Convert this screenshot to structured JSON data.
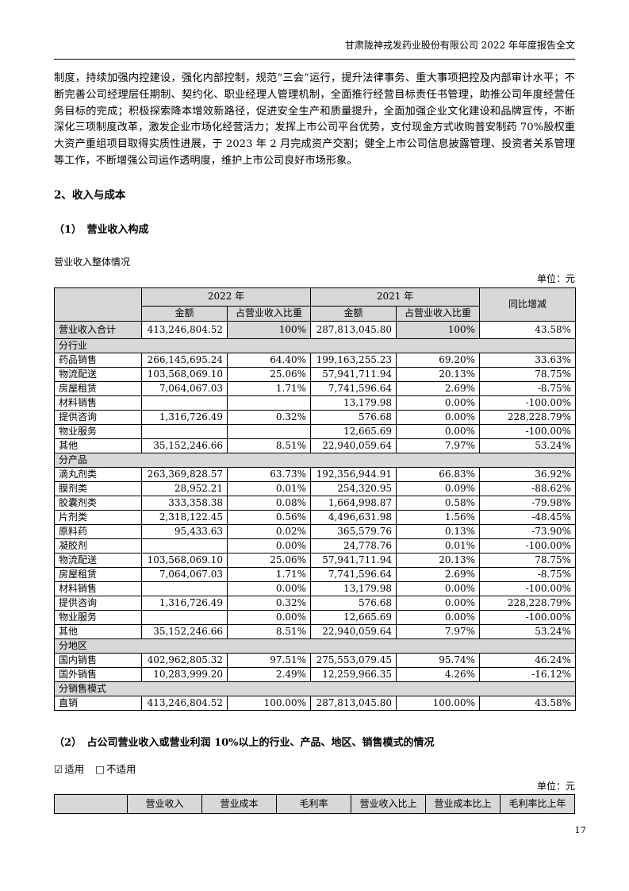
{
  "header": {
    "title": "甘肃陇神戎发药业股份有限公司 2022 年年度报告全文"
  },
  "body_paragraph": "制度，持续加强内控建设，强化内部控制，规范“三会”运行，提升法律事务、重大事项把控及内部审计水平；不断完善公司经理层任期制、契约化、职业经理人管理机制，全面推行经营目标责任书管理，助推公司年度经营任务目标的完成；积极探索降本增效新路径，促进安全生产和质量提升，全面加强企业文化建设和品牌宣传，不断深化三项制度改革，激发企业市场化经营活力；发挥上市公司平台优势，支付现金方式收购普安制药 70%股权重大资产重组项目取得实质性进展，于 2023 年 2 月完成资产交割；健全上市公司信息披露管理、投资者关系管理等工作，不断增强公司运作透明度，维护上市公司良好市场形象。",
  "sections": {
    "income_cost_title": "2、收入与成本",
    "sub1_title": "（1）　营业收入构成",
    "table1_caption": "营业收入整体情况",
    "unit_label": "单位：元",
    "sub2_title": "（2）　占公司营业收入或营业利润 10%以上的行业、产品、地区、销售模式的情况"
  },
  "applicability": {
    "applicable_glyph": "☑",
    "applicable_label": "适用",
    "not_applicable_glyph": "□",
    "not_applicable_label": "不适用"
  },
  "table1": {
    "headers": {
      "year_2022": "2022 年",
      "year_2021": "2021 年",
      "yoy": "同比增减",
      "amount": "金额",
      "ratio": "占营业收入比重"
    },
    "rows": [
      {
        "type": "total",
        "label": "营业收入合计",
        "cells": [
          "413,246,804.52",
          "100%",
          "287,813,045.80",
          "100%",
          "43.58%"
        ]
      },
      {
        "type": "section",
        "label": "分行业",
        "cells": []
      },
      {
        "type": "data",
        "label": "药品销售",
        "cells": [
          "266,145,695.24",
          "64.40%",
          "199,163,255.23",
          "69.20%",
          "33.63%"
        ]
      },
      {
        "type": "data",
        "label": "物流配送",
        "cells": [
          "103,568,069.10",
          "25.06%",
          "57,941,711.94",
          "20.13%",
          "78.75%"
        ]
      },
      {
        "type": "data",
        "label": "房屋租赁",
        "cells": [
          "7,064,067.03",
          "1.71%",
          "7,741,596.64",
          "2.69%",
          "-8.75%"
        ]
      },
      {
        "type": "data",
        "label": "材料销售",
        "cells": [
          "",
          "",
          "13,179.98",
          "0.00%",
          "-100.00%"
        ]
      },
      {
        "type": "data",
        "label": "提供咨询",
        "cells": [
          "1,316,726.49",
          "0.32%",
          "576.68",
          "0.00%",
          "228,228.79%"
        ]
      },
      {
        "type": "data",
        "label": "物业服务",
        "cells": [
          "",
          "",
          "12,665.69",
          "0.00%",
          "-100.00%"
        ]
      },
      {
        "type": "data",
        "label": "其他",
        "cells": [
          "35,152,246.66",
          "8.51%",
          "22,940,059.64",
          "7.97%",
          "53.24%"
        ]
      },
      {
        "type": "section",
        "label": "分产品",
        "cells": []
      },
      {
        "type": "data",
        "label": "滴丸剂类",
        "cells": [
          "263,369,828.57",
          "63.73%",
          "192,356,944.91",
          "66.83%",
          "36.92%"
        ]
      },
      {
        "type": "data",
        "label": "膜剂类",
        "cells": [
          "28,952.21",
          "0.01%",
          "254,320.95",
          "0.09%",
          "-88.62%"
        ]
      },
      {
        "type": "data",
        "label": "胶囊剂类",
        "cells": [
          "333,358.38",
          "0.08%",
          "1,664,998.87",
          "0.58%",
          "-79.98%"
        ]
      },
      {
        "type": "data",
        "label": "片剂类",
        "cells": [
          "2,318,122.45",
          "0.56%",
          "4,496,631.98",
          "1.56%",
          "-48.45%"
        ]
      },
      {
        "type": "data",
        "label": "原料药",
        "cells": [
          "95,433.63",
          "0.02%",
          "365,579.76",
          "0.13%",
          "-73.90%"
        ]
      },
      {
        "type": "data",
        "label": "凝胶剂",
        "cells": [
          "",
          "0.00%",
          "24,778.76",
          "0.01%",
          "-100.00%"
        ]
      },
      {
        "type": "data",
        "label": "物流配送",
        "cells": [
          "103,568,069.10",
          "25.06%",
          "57,941,711.94",
          "20.13%",
          "78.75%"
        ]
      },
      {
        "type": "data",
        "label": "房屋租赁",
        "cells": [
          "7,064,067.03",
          "1.71%",
          "7,741,596.64",
          "2.69%",
          "-8.75%"
        ]
      },
      {
        "type": "data",
        "label": "材料销售",
        "cells": [
          "",
          "0.00%",
          "13,179.98",
          "0.00%",
          "-100.00%"
        ]
      },
      {
        "type": "data",
        "label": "提供咨询",
        "cells": [
          "1,316,726.49",
          "0.32%",
          "576.68",
          "0.00%",
          "228,228.79%"
        ]
      },
      {
        "type": "data",
        "label": "物业服务",
        "cells": [
          "",
          "0.00%",
          "12,665.69",
          "0.00%",
          "-100.00%"
        ]
      },
      {
        "type": "data",
        "label": "其他",
        "cells": [
          "35,152,246.66",
          "8.51%",
          "22,940,059.64",
          "7.97%",
          "53.24%"
        ]
      },
      {
        "type": "section",
        "label": "分地区",
        "cells": []
      },
      {
        "type": "data",
        "label": "国内销售",
        "cells": [
          "402,962,805.32",
          "97.51%",
          "275,553,079.45",
          "95.74%",
          "46.24%"
        ]
      },
      {
        "type": "data",
        "label": "国外销售",
        "cells": [
          "10,283,999.20",
          "2.49%",
          "12,259,966.35",
          "4.26%",
          "-16.12%"
        ]
      },
      {
        "type": "section",
        "label": "分销售模式",
        "cells": []
      },
      {
        "type": "data",
        "label": "直销",
        "cells": [
          "413,246,804.52",
          "100.00%",
          "287,813,045.80",
          "100.00%",
          "43.58%"
        ]
      }
    ]
  },
  "table2": {
    "headers": [
      "",
      "营业收入",
      "营业成本",
      "毛利率",
      "营业收入比上",
      "营业成本比上",
      "毛利率比上年"
    ]
  },
  "page_number": "17",
  "colors": {
    "table_header_bg": "#d8d8d8",
    "border": "#000000",
    "text": "#000000"
  }
}
